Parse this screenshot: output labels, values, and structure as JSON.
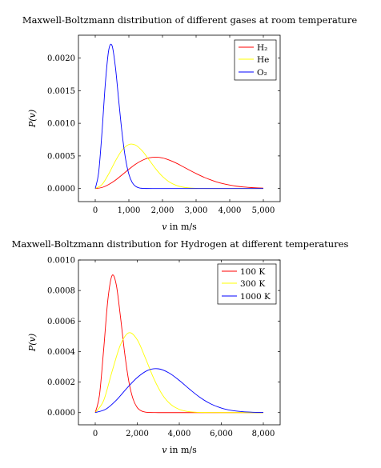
{
  "chart_data": [
    {
      "type": "line",
      "title": "Maxwell-Boltzmann distribution of different gases at room temperature",
      "xlabel_var": "v",
      "xlabel_rest": " in m/s",
      "ylabel": "P(v)",
      "xlim": [
        -500,
        5500
      ],
      "ylim": [
        -0.0002,
        0.00235
      ],
      "xticks": [
        0,
        1000,
        2000,
        3000,
        4000,
        5000
      ],
      "xtick_labels": [
        "0",
        "1,000",
        "2,000",
        "3,000",
        "4,000",
        "5,000"
      ],
      "yticks": [
        0,
        0.0005,
        0.001,
        0.0015,
        0.002
      ],
      "ytick_labels": [
        "0.0000",
        "0.0005",
        "0.0010",
        "0.0015",
        "0.0020"
      ],
      "grid": false,
      "legend_position": "top-right",
      "series": [
        {
          "name": "H₂",
          "color": "#ff0000",
          "x": [
            0,
            200,
            400,
            600,
            800,
            1000,
            1200,
            1400,
            1600,
            1800,
            2000,
            2200,
            2400,
            2600,
            2800,
            3000,
            3200,
            3400,
            3600,
            3800,
            4000,
            4200,
            4400,
            4600,
            4800,
            5000
          ],
          "y": [
            0,
            1.6e-05,
            6.2e-05,
            0.000128,
            0.000211,
            0.000295,
            0.000373,
            0.000433,
            0.00047,
            0.000481,
            0.000469,
            0.000437,
            0.000392,
            0.000338,
            0.000283,
            0.00023,
            0.000181,
            0.000139,
            0.000103,
            7.5e-05,
            5.3e-05,
            3.6e-05,
            2.4e-05,
            1.6e-05,
            1e-05,
            6e-06
          ]
        },
        {
          "name": "He",
          "color": "#ffff00",
          "x": [
            0,
            200,
            400,
            600,
            800,
            1000,
            1200,
            1400,
            1600,
            1800,
            2000,
            2200,
            2400,
            2600,
            2800,
            3000,
            3200,
            3400,
            3600,
            3800,
            4000,
            4200,
            4400,
            4600,
            4800,
            5000
          ],
          "y": [
            0,
            6.1e-05,
            0.000224,
            0.000423,
            0.000589,
            0.000675,
            0.000666,
            0.000576,
            0.000441,
            0.000302,
            0.000185,
            0.000102,
            5.1e-05,
            2.3e-05,
            9.1e-06,
            3.3e-06,
            1.1e-06,
            3e-07,
            1e-07,
            0,
            0,
            0,
            0,
            0,
            0,
            0
          ]
        },
        {
          "name": "O₂",
          "color": "#0000ff",
          "x": [
            0,
            100,
            200,
            300,
            400,
            500,
            600,
            700,
            800,
            900,
            1000,
            1100,
            1200,
            1300,
            1400,
            1500,
            1700,
            2000,
            2500,
            3000,
            3500,
            4000,
            4500,
            5000
          ],
          "y": [
            0,
            0.00024,
            0.00086,
            0.00161,
            0.00212,
            0.00219,
            0.00186,
            0.00134,
            0.00084,
            0.00046,
            0.00022,
            9.2e-05,
            3.4e-05,
            1.1e-05,
            3.2e-06,
            8e-07,
            0,
            0,
            0,
            0,
            0,
            0,
            0,
            0
          ]
        }
      ]
    },
    {
      "type": "line",
      "title": "Maxwell-Boltzmann distribution for Hydrogen at different temperatures",
      "xlabel_var": "v",
      "xlabel_rest": " in m/s",
      "ylabel": "P(v)",
      "xlim": [
        -800,
        8800
      ],
      "ylim": [
        -8e-05,
        0.001
      ],
      "xticks": [
        0,
        2000,
        4000,
        6000,
        8000
      ],
      "xtick_labels": [
        "0",
        "2,000",
        "4,000",
        "6,000",
        "8,000"
      ],
      "yticks": [
        0,
        0.0002,
        0.0004,
        0.0006,
        0.0008,
        0.001
      ],
      "ytick_labels": [
        "0.0000",
        "0.0002",
        "0.0004",
        "0.0006",
        "0.0008",
        "0.0010"
      ],
      "grid": false,
      "legend_position": "top-right",
      "series": [
        {
          "name": "100 K",
          "color": "#ff0000",
          "x": [
            0,
            200,
            400,
            600,
            800,
            1000,
            1200,
            1400,
            1600,
            1800,
            2000,
            2200,
            2400,
            2600,
            2800,
            3000,
            3500,
            4000,
            5000,
            6000,
            7000,
            8000
          ],
          "y": [
            0,
            0.000113,
            0.000413,
            0.000739,
            0.000898,
            0.000838,
            0.000628,
            0.00039,
            0.000203,
            8.9e-05,
            3.3e-05,
            1.07e-05,
            3e-06,
            7e-07,
            1e-07,
            0,
            0,
            0,
            0,
            0,
            0,
            0
          ]
        },
        {
          "name": "300 K",
          "color": "#ffff00",
          "x": [
            0,
            400,
            800,
            1200,
            1600,
            2000,
            2400,
            2800,
            3200,
            3600,
            4000,
            4400,
            4800,
            5200,
            5600,
            6000,
            7000,
            8000
          ],
          "y": [
            0,
            7.9e-05,
            0.000269,
            0.000444,
            0.000523,
            0.000477,
            0.000353,
            0.000219,
            0.000116,
            5.3e-05,
            2.1e-05,
            7.3e-06,
            2.2e-06,
            6e-07,
            1e-07,
            0,
            0,
            0
          ]
        },
        {
          "name": "1000 K",
          "color": "#0000ff",
          "x": [
            0,
            500,
            1000,
            1500,
            2000,
            2500,
            3000,
            3500,
            4000,
            4500,
            5000,
            5500,
            6000,
            6500,
            7000,
            7500,
            8000
          ],
          "y": [
            0,
            2.2e-05,
            8.1e-05,
            0.000159,
            0.00023,
            0.000277,
            0.000287,
            0.000261,
            0.000211,
            0.000152,
            9.8e-05,
            5.7e-05,
            3e-05,
            1.4e-05,
            6.1e-06,
            2.4e-06,
            9e-07
          ]
        }
      ]
    }
  ]
}
